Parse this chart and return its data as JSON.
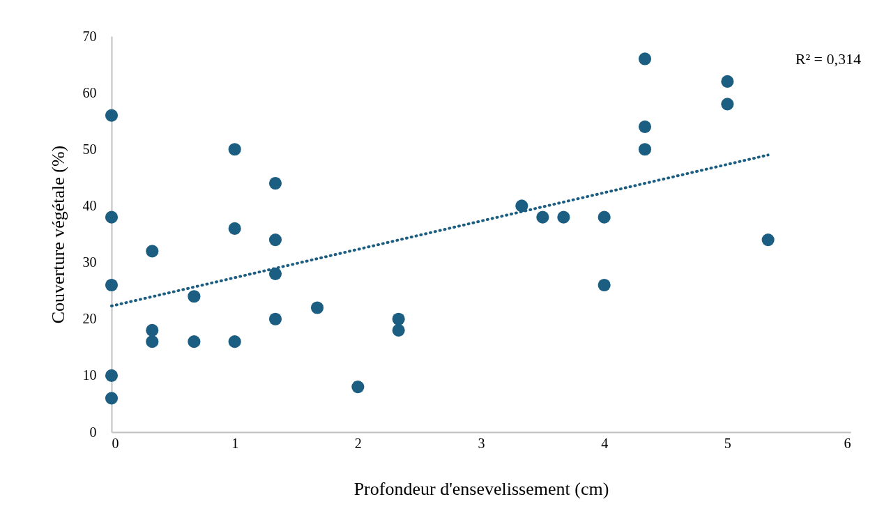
{
  "chart_data": {
    "type": "scatter",
    "xlabel": "Profondeur d'ensevelissement (cm)",
    "ylabel": "Couverture végétale (%)",
    "xlim": [
      0,
      6
    ],
    "ylim": [
      0,
      70
    ],
    "xticks": [
      0,
      1,
      2,
      3,
      4,
      5,
      6
    ],
    "yticks": [
      0,
      10,
      20,
      30,
      40,
      50,
      60,
      70
    ],
    "marker": "circle",
    "annotations": [
      "R² = 0,314"
    ],
    "series": [
      {
        "color": "#1b5e82",
        "x": [
          0,
          0,
          0,
          0,
          0,
          0.33,
          0.33,
          0.33,
          0.67,
          0.67,
          1,
          1,
          1,
          1.33,
          1.33,
          1.33,
          1.33,
          1.67,
          2,
          2.33,
          2.33,
          3.33,
          3.5,
          3.67,
          4,
          4,
          4.33,
          4.33,
          4.33,
          5,
          5,
          5.33
        ],
        "values": [
          56,
          38,
          26,
          10,
          6,
          32,
          18,
          16,
          24,
          16,
          50,
          36,
          16,
          44,
          34,
          28,
          20,
          22,
          8,
          20,
          18,
          40,
          38,
          38,
          38,
          26,
          66,
          54,
          50,
          62,
          58,
          34
        ]
      },
      {
        "type": "line",
        "color": "#1b5e82",
        "marker": "none",
        "line_style": "dotted",
        "x": [
          0,
          5.33
        ],
        "values": [
          22.3,
          49
        ]
      }
    ]
  }
}
